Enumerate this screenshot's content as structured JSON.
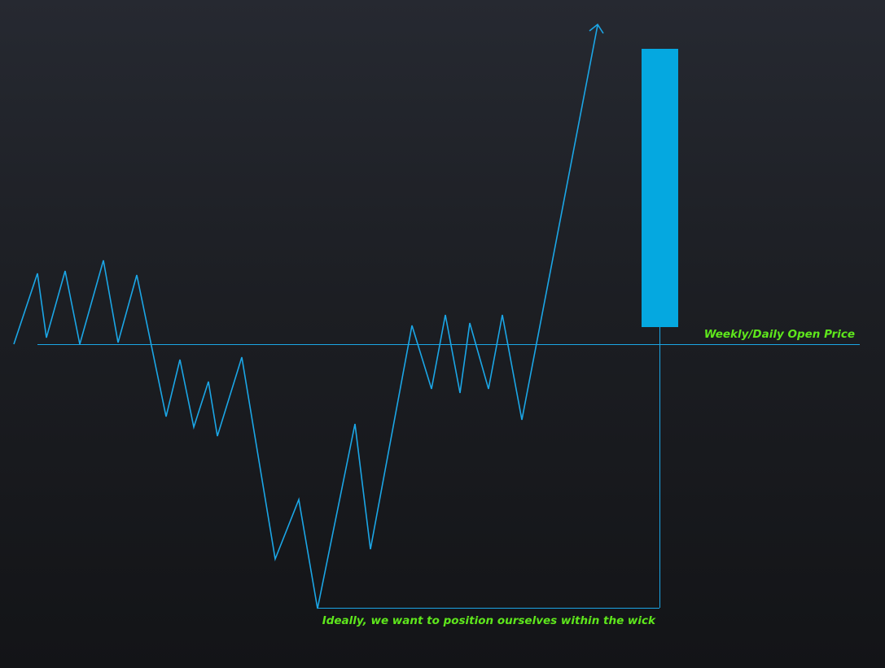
{
  "colors": {
    "line": "#1ba6e6",
    "candle_body": "#05a8e0",
    "annotation_text": "#5ee61c"
  },
  "annotations": {
    "open_price_label": "Weekly/Daily Open Price",
    "wick_note": "Ideally, we want to position ourselves within the wick"
  }
}
